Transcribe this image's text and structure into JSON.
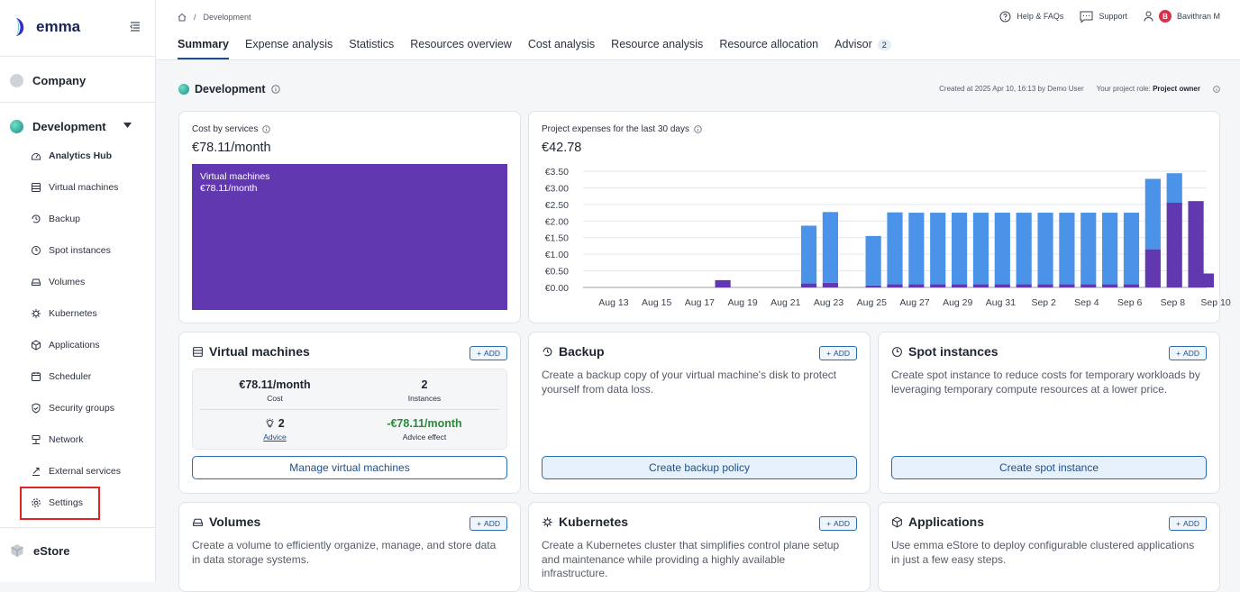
{
  "app": {
    "name": "emma"
  },
  "sidebar": {
    "company_label": "Company",
    "project_label": "Development",
    "items": [
      {
        "label": "Analytics Hub",
        "icon": "dashboard-icon"
      },
      {
        "label": "Virtual machines",
        "icon": "server-icon"
      },
      {
        "label": "Backup",
        "icon": "backup-icon"
      },
      {
        "label": "Spot instances",
        "icon": "clock-icon"
      },
      {
        "label": "Volumes",
        "icon": "drive-icon"
      },
      {
        "label": "Kubernetes",
        "icon": "helm-icon"
      },
      {
        "label": "Applications",
        "icon": "cube-icon"
      },
      {
        "label": "Scheduler",
        "icon": "calendar-icon"
      },
      {
        "label": "Security groups",
        "icon": "shield-icon"
      },
      {
        "label": "Network",
        "icon": "network-icon"
      },
      {
        "label": "External services",
        "icon": "link-icon"
      },
      {
        "label": "Settings",
        "icon": "gear-icon"
      }
    ],
    "store_label": "eStore"
  },
  "header": {
    "breadcrumb": "Development",
    "help_label": "Help & FAQs",
    "support_label": "Support",
    "user_initial": "B",
    "user_name": "Bavithran M",
    "tabs": [
      {
        "label": "Summary",
        "active": true
      },
      {
        "label": "Expense analysis"
      },
      {
        "label": "Statistics"
      },
      {
        "label": "Resources overview"
      },
      {
        "label": "Cost analysis"
      },
      {
        "label": "Resource analysis"
      },
      {
        "label": "Resource allocation"
      },
      {
        "label": "Advisor",
        "badge": "2"
      }
    ]
  },
  "page": {
    "title": "Development",
    "created_text": "Created at 2025 Apr 10, 16:13 by Demo User",
    "role_label": "Your project role:",
    "role_value": "Project owner"
  },
  "cost_by_services": {
    "label": "Cost by services",
    "total": "€78.11/month",
    "block_name": "Virtual machines",
    "block_value": "€78.11/month"
  },
  "expenses": {
    "label": "Project expenses for the last 30 days",
    "total": "€42.78"
  },
  "chart_data": {
    "type": "bar",
    "stacked": true,
    "x_tick_labels": [
      "Aug 13",
      "Aug 15",
      "Aug 17",
      "Aug 19",
      "Aug 21",
      "Aug 23",
      "Aug 25",
      "Aug 27",
      "Aug 29",
      "Aug 31",
      "Sep 2",
      "Sep 4",
      "Sep 6",
      "Sep 8",
      "Sep 10"
    ],
    "y_tick_labels": [
      "€0.00",
      "€0.50",
      "€1.00",
      "€1.50",
      "€2.00",
      "€2.50",
      "€3.00",
      "€3.50"
    ],
    "ylim": [
      0,
      3.5
    ],
    "categories": [
      "Aug 13",
      "Aug 14",
      "Aug 15",
      "Aug 16",
      "Aug 17",
      "Aug 18",
      "Aug 19",
      "Aug 20",
      "Aug 21",
      "Aug 22",
      "Aug 23",
      "Aug 24",
      "Aug 25",
      "Aug 26",
      "Aug 27",
      "Aug 28",
      "Aug 29",
      "Aug 30",
      "Aug 31",
      "Sep 1",
      "Sep 2",
      "Sep 3",
      "Sep 4",
      "Sep 5",
      "Sep 6",
      "Sep 7",
      "Sep 8",
      "Sep 9",
      "Sep 10"
    ],
    "series": [
      {
        "color": "#6138b0",
        "values": [
          0,
          0,
          0,
          0,
          0,
          0,
          0.22,
          0,
          0,
          0,
          0.12,
          0.14,
          0,
          0.06,
          0.1,
          0.1,
          0.1,
          0.1,
          0.1,
          0.1,
          0.1,
          0.1,
          0.1,
          0.1,
          0.1,
          0.1,
          1.15,
          2.55,
          2.6
        ]
      },
      {
        "color": "#4a93e8",
        "values": [
          0,
          0,
          0,
          0,
          0,
          0,
          0,
          0,
          0,
          0,
          1.74,
          2.13,
          0,
          1.49,
          2.16,
          2.15,
          2.15,
          2.15,
          2.15,
          2.15,
          2.15,
          2.15,
          2.15,
          2.15,
          2.15,
          2.15,
          2.12,
          0.89,
          0
        ]
      }
    ],
    "extra_last_bar": {
      "value": 0.42,
      "color": "#6138b0"
    }
  },
  "vm_card": {
    "title": "Virtual machines",
    "add_label": "ADD",
    "cost_value": "€78.11/month",
    "cost_label": "Cost",
    "instances_value": "2",
    "instances_label": "Instances",
    "advice_value": "2",
    "advice_label": "Advice",
    "effect_value": "-€78.11/month",
    "effect_label": "Advice effect",
    "button": "Manage virtual machines"
  },
  "backup_card": {
    "title": "Backup",
    "add_label": "ADD",
    "desc": "Create a backup copy of your virtual machine's disk to protect yourself from data loss.",
    "button": "Create backup policy"
  },
  "spot_card": {
    "title": "Spot instances",
    "add_label": "ADD",
    "desc": "Create spot instance to reduce costs for temporary workloads by leveraging temporary compute resources at a lower price.",
    "button": "Create spot instance"
  },
  "volumes_card": {
    "title": "Volumes",
    "add_label": "ADD",
    "desc": "Create a volume to efficiently organize, manage, and store data in data storage systems."
  },
  "kube_card": {
    "title": "Kubernetes",
    "add_label": "ADD",
    "desc": "Create a Kubernetes cluster that simplifies control plane setup and maintenance while providing a highly available infrastructure."
  },
  "apps_card": {
    "title": "Applications",
    "add_label": "ADD",
    "desc": "Use emma eStore to deploy configurable clustered applications in just a few easy steps."
  }
}
